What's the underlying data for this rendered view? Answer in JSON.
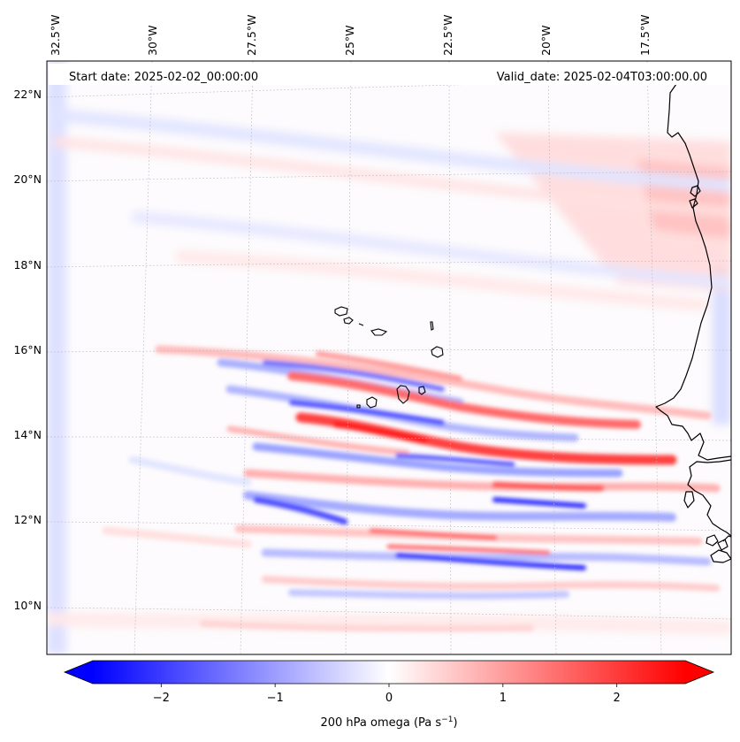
{
  "header": {
    "start_label": "Start date: 2025-02-02_00:00:00",
    "valid_label": "Valid_date: 2025-02-04T03:00:00.00"
  },
  "map": {
    "variable": "200 hPa omega",
    "units": "Pa s",
    "units_exponent": "−1",
    "lat_ticks": [
      "22°N",
      "20°N",
      "18°N",
      "16°N",
      "14°N",
      "12°N",
      "10°N"
    ],
    "lon_ticks": [
      "32.5°W",
      "30°W",
      "27.5°W",
      "25°W",
      "22.5°W",
      "20°W",
      "17.5°W"
    ],
    "features": [
      "Cape Verde Islands",
      "West African coastline"
    ]
  },
  "colorbar": {
    "ticks": [
      "−2",
      "−1",
      "0",
      "1",
      "2"
    ],
    "tick_values": [
      -2,
      -1,
      0,
      1,
      2
    ],
    "vmin": -2.6,
    "vmax": 2.6,
    "colormap": "bwr",
    "extend": "both"
  },
  "colors": {
    "negative": "#0000ff",
    "neutral": "#ffffff",
    "positive": "#ff0000",
    "coastline": "#000000",
    "gridline": "#b0b0b0"
  }
}
